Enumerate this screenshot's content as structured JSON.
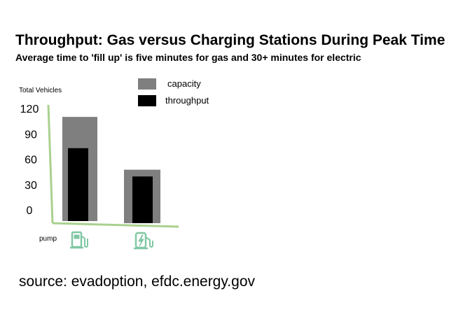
{
  "title": "Throughput:  Gas versus Charging Stations During Peak Time",
  "subtitle": "Average time to 'fill up' is five minutes for gas and 30+ minutes for electric",
  "source": "source:  evadoption, efdc.energy.gov",
  "chart_data": {
    "type": "bar",
    "ylabel": "Total Vehicles",
    "yticks": [
      0,
      30,
      60,
      90,
      120
    ],
    "ylim": [
      0,
      120
    ],
    "grid": false,
    "legend_position": "top-center",
    "categories": [
      "pump",
      ""
    ],
    "category_icons": [
      "gas-pump-icon",
      "ev-charger-icon"
    ],
    "series": [
      {
        "name": "capacity",
        "color": "#7f7f7f",
        "values": [
          110,
          50
        ]
      },
      {
        "name": "throughput",
        "color": "#000000",
        "values": [
          73,
          42
        ]
      }
    ],
    "axis_color": "#a9d18e",
    "icon_color": "#7fc7a3"
  }
}
